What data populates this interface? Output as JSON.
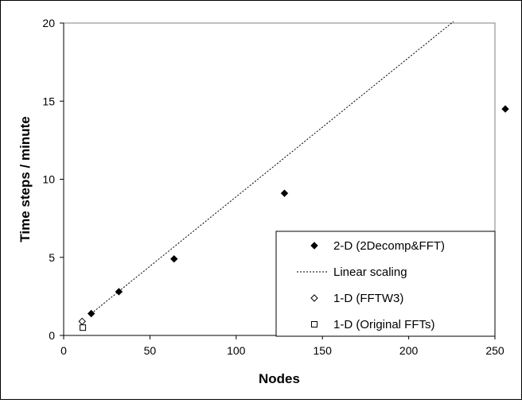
{
  "chart_data": {
    "type": "scatter",
    "title": "",
    "xlabel": "Nodes",
    "ylabel": "Time steps / minute",
    "xlim": [
      0,
      250
    ],
    "ylim": [
      0,
      20
    ],
    "xticks": [
      "0",
      "50",
      "100",
      "150",
      "200",
      "250"
    ],
    "yticks": [
      "0",
      "5",
      "10",
      "15",
      "20"
    ],
    "grid": false,
    "legend_position": "bottom-right",
    "series": [
      {
        "name": "2-D (2Decomp&FFT)",
        "marker": "filled-diamond",
        "points": [
          [
            16,
            1.4
          ],
          [
            32,
            2.8
          ],
          [
            64,
            4.9
          ],
          [
            128,
            9.1
          ],
          [
            256,
            14.5
          ]
        ]
      },
      {
        "name": "Linear scaling",
        "style": "dashed-line",
        "points": [
          [
            16,
            1.4
          ],
          [
            226,
            20.1
          ]
        ]
      },
      {
        "name": "1-D (FFTW3)",
        "marker": "open-diamond",
        "points": [
          [
            10.7,
            0.9
          ]
        ]
      },
      {
        "name": "1-D (Original FFTs)",
        "marker": "open-square",
        "points": [
          [
            11.1,
            0.5
          ]
        ]
      }
    ]
  }
}
